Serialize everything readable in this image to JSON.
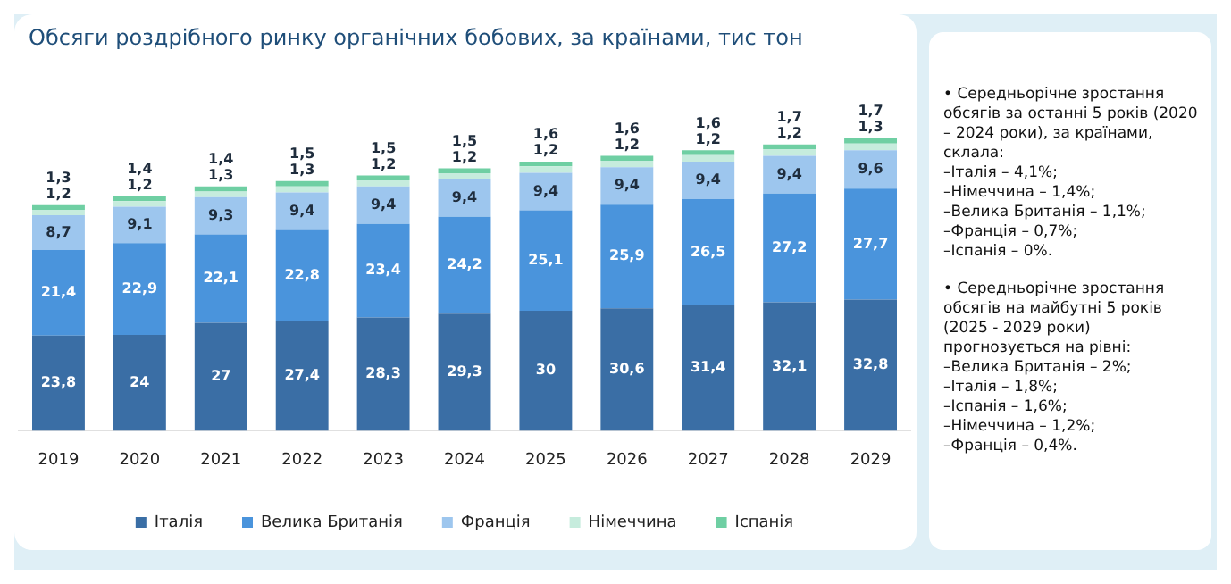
{
  "chart_data": {
    "type": "bar",
    "stacked": true,
    "title": "Обсяги роздрібного ринку органічних бобових, за країнами, тис тон",
    "categories": [
      "2019",
      "2020",
      "2021",
      "2022",
      "2023",
      "2024",
      "2025",
      "2026",
      "2027",
      "2028",
      "2029"
    ],
    "series": [
      {
        "name": "Італія",
        "color": "#3a6ea5",
        "values": [
          23.8,
          24,
          27,
          27.4,
          28.3,
          29.3,
          30,
          30.6,
          31.4,
          32.1,
          32.8
        ],
        "value_labels": [
          "23,8",
          "24",
          "27",
          "27,4",
          "28,3",
          "29,3",
          "30",
          "30,6",
          "31,4",
          "32,1",
          "32,8"
        ]
      },
      {
        "name": "Велика Британія",
        "color": "#4a94dc",
        "values": [
          21.4,
          22.9,
          22.1,
          22.8,
          23.4,
          24.2,
          25.1,
          25.9,
          26.5,
          27.2,
          27.7
        ],
        "value_labels": [
          "21,4",
          "22,9",
          "22,1",
          "22,8",
          "23,4",
          "24,2",
          "25,1",
          "25,9",
          "26,5",
          "27,2",
          "27,7"
        ]
      },
      {
        "name": "Франція",
        "color": "#9dc6ee",
        "values": [
          8.7,
          9.1,
          9.3,
          9.4,
          9.4,
          9.4,
          9.4,
          9.4,
          9.4,
          9.4,
          9.6
        ],
        "value_labels": [
          "8,7",
          "9,1",
          "9,3",
          "9,4",
          "9,4",
          "9,4",
          "9,4",
          "9,4",
          "9,4",
          "9,4",
          "9,6"
        ]
      },
      {
        "name": "Німеччина",
        "color": "#c6ecdd",
        "values": [
          1.3,
          1.4,
          1.4,
          1.5,
          1.5,
          1.5,
          1.6,
          1.6,
          1.6,
          1.7,
          1.7
        ],
        "value_labels": [
          "1,3",
          "1,4",
          "1,4",
          "1,5",
          "1,5",
          "1,5",
          "1,6",
          "1,6",
          "1,6",
          "1,7",
          "1,7"
        ]
      },
      {
        "name": "Іспанія",
        "color": "#6fcfa3",
        "values": [
          1.2,
          1.2,
          1.3,
          1.3,
          1.2,
          1.2,
          1.2,
          1.2,
          1.2,
          1.2,
          1.3
        ],
        "value_labels": [
          "1,2",
          "1,2",
          "1,3",
          "1,3",
          "1,2",
          "1,2",
          "1,2",
          "1,2",
          "1,2",
          "1,2",
          "1,3"
        ]
      }
    ],
    "legend": "bottom",
    "grid": false,
    "annotations": [
      "• Середньорічне зростання обсягів за останні 5 років (2020 – 2024 роки), за країнами, склала:\n–Італія – 4,1%;\n–Німеччина – 1,4%;\n–Велика Британія – 1,1%;\n–Франція – 0,7%;\n–Іспанія – 0%.",
      "• Середньорічне зростання обсягів на майбутні 5 років (2025 - 2029 роки) прогнозується на рівні:\n–Велика Британія – 2%;\n–Італія – 1,8%;\n–Іспанія – 1,6%;\n–Німеччина – 1,2%;\n–Франція – 0,4%."
    ]
  }
}
